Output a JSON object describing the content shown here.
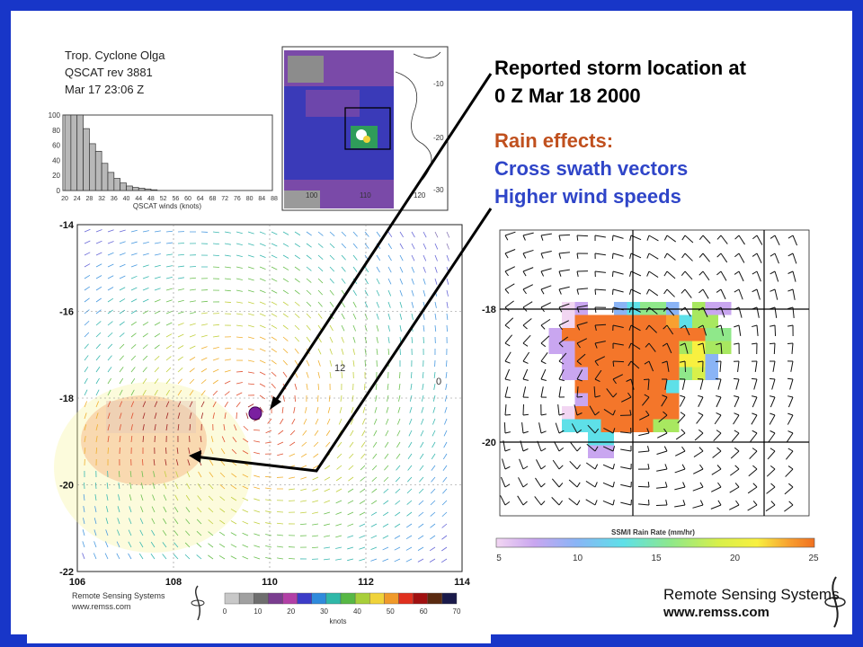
{
  "header": {
    "line1": "Trop. Cyclone Olga",
    "line2": "QSCAT rev 3881",
    "line3": "Mar 17    23:06 Z"
  },
  "annotations": {
    "storm_line1": "Reported storm location at",
    "storm_line2": "0 Z Mar 18 2000",
    "rain_title": "Rain effects:",
    "rain_item1": "Cross swath vectors",
    "rain_item2": "Higher wind speeds",
    "storm_color": "#000000",
    "rain_title_color": "#c0501e",
    "rain_item_color": "#2f45c8"
  },
  "histogram": {
    "xlabel": "QSCAT winds (knots)",
    "ylim": [
      0,
      100
    ],
    "yticks": [
      "0",
      "20",
      "40",
      "60",
      "80",
      "100"
    ],
    "xticks": [
      "20",
      "24",
      "28",
      "32",
      "36",
      "40",
      "44",
      "48",
      "52",
      "56",
      "60",
      "64",
      "68",
      "72",
      "76",
      "80",
      "84",
      "88"
    ]
  },
  "wind_map": {
    "x_ticks": [
      "106",
      "108",
      "110",
      "112",
      "114"
    ],
    "y_ticks": [
      "-14",
      "-16",
      "-18",
      "-20",
      "-22"
    ],
    "contour_labels": [
      "12",
      "0"
    ],
    "colorbar_ticks": [
      "0",
      "10",
      "20",
      "30",
      "40",
      "50",
      "60",
      "70"
    ],
    "colorbar_label": "knots",
    "colorbar_colors": [
      "#c8c8c8",
      "#a0a0a0",
      "#6e6e6e",
      "#7a3d8f",
      "#b23fa6",
      "#3c3cc8",
      "#2f8bdc",
      "#2fb8a8",
      "#57b845",
      "#a8cf3a",
      "#f0d33a",
      "#f09a2a",
      "#e0301e",
      "#a01010",
      "#5a2a10",
      "#1a1a4a"
    ],
    "credit_line1": "Remote Sensing Systems",
    "credit_line2": "www.remss.com"
  },
  "satellite_map": {
    "lat_labels": [
      "-10",
      "-20",
      "-30"
    ],
    "lon_labels": [
      "100",
      "110",
      "120"
    ]
  },
  "rain_map": {
    "y_ticks": [
      "-18",
      "-20"
    ],
    "colorbar_title": "SSM/I Rain Rate (mm/hr)",
    "colorbar_ticks": [
      "5",
      "10",
      "15",
      "20",
      "25"
    ]
  },
  "footer": {
    "credit_line1": "Remote Sensing Systems",
    "credit_line2": "www.remss.com"
  },
  "chart_data": [
    {
      "type": "bar",
      "xlabel": "QSCAT winds (knots)",
      "ylabel": "",
      "ylim": [
        0,
        100
      ],
      "categories": [
        "20",
        "22",
        "24",
        "26",
        "28",
        "30",
        "32",
        "34",
        "36",
        "38",
        "40",
        "42",
        "44",
        "46",
        "48"
      ],
      "values": [
        100,
        100,
        100,
        82,
        62,
        52,
        36,
        24,
        16,
        10,
        6,
        4,
        3,
        2,
        1
      ]
    },
    {
      "type": "scatter",
      "title": "",
      "xlabel": "",
      "ylabel": "",
      "xlim": [
        106,
        114
      ],
      "ylim": [
        -22,
        -14
      ],
      "series": [
        {
          "name": "",
          "x": [
            109.7
          ],
          "y": [
            -18.35
          ]
        }
      ]
    },
    {
      "type": "heatmap",
      "title": "SSM/I Rain Rate (mm/hr)",
      "colorbar_range": [
        5,
        25
      ],
      "ylim": [
        -21,
        -17.4
      ]
    }
  ]
}
